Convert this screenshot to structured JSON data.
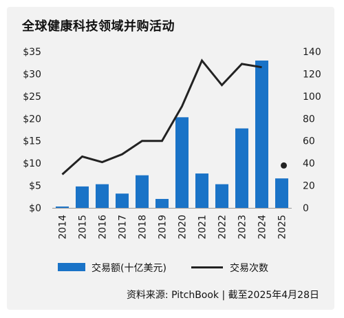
{
  "title": "全球健康科技领域并购活动",
  "source": "资料来源: PitchBook | 截至2025年4月28日",
  "colors": {
    "bar": "#1a73c7",
    "line": "#222222",
    "background": "#f2f2f2"
  },
  "chart_data": {
    "type": "bar",
    "categories": [
      "2014",
      "2015",
      "2016",
      "2017",
      "2018",
      "2019",
      "2020",
      "2021",
      "2022",
      "2023",
      "2024",
      "2025"
    ],
    "series": [
      {
        "name": "交易额(十亿美元)",
        "chart_type": "bar",
        "axis": "left",
        "values": [
          0.3,
          4.8,
          5.3,
          3.2,
          7.3,
          2.0,
          20.3,
          7.7,
          5.3,
          17.8,
          33.0,
          6.6
        ]
      },
      {
        "name": "交易次数",
        "chart_type": "line",
        "axis": "right",
        "values": [
          30,
          46,
          41,
          48,
          60,
          60,
          91,
          132,
          110,
          129,
          126,
          null
        ],
        "point_values": [
          {
            "x": "2025",
            "y": 38
          }
        ]
      }
    ],
    "y_left": {
      "ylim": [
        0,
        35
      ],
      "ticks": [
        "$0",
        "$5",
        "$10",
        "$15",
        "$20",
        "$25",
        "$30",
        "$35"
      ]
    },
    "y_right": {
      "ylim": [
        0,
        140
      ],
      "ticks": [
        "0",
        "20",
        "40",
        "60",
        "80",
        "100",
        "120",
        "140"
      ]
    },
    "grid": false,
    "legend_position": "bottom"
  }
}
